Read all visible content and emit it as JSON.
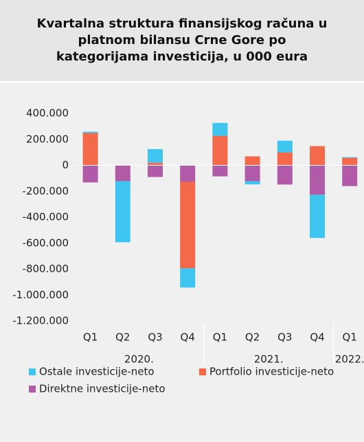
{
  "chart_data": {
    "type": "stacked_bar",
    "title": "Kvartalna struktura finansijskog računa u platnom bilansu Crne Gore po kategorijama investicija, u 000 eura",
    "categories": [
      "Q1",
      "Q2",
      "Q3",
      "Q4",
      "Q1",
      "Q2",
      "Q3",
      "Q4",
      "Q1"
    ],
    "x_groups": [
      {
        "label": "2020.",
        "count": 4
      },
      {
        "label": "2021.",
        "count": 4
      },
      {
        "label": "2022.",
        "count": 1
      }
    ],
    "series": [
      {
        "name": "Ostale investicije-neto",
        "color": "#3fc6f0",
        "values": [
          10000,
          -471000,
          105000,
          -148000,
          100000,
          -25000,
          90000,
          -333000,
          5000
        ]
      },
      {
        "name": "Portfolio investicije-neto",
        "color": "#f4694a",
        "values": [
          249000,
          0,
          20000,
          -667000,
          227000,
          69000,
          100000,
          148000,
          58000
        ]
      },
      {
        "name": "Direktne investicije-neto",
        "color": "#b05aa8",
        "values": [
          -132000,
          -122000,
          -90000,
          -127000,
          -85000,
          -122000,
          -148000,
          -227000,
          -160000
        ]
      }
    ],
    "ylim": [
      -1200000,
      400000
    ],
    "yticks": [
      {
        "value": 400000,
        "label": "400.000"
      },
      {
        "value": 200000,
        "label": "200.000"
      },
      0,
      {
        "value": -200000,
        "label": "-200.000"
      },
      {
        "value": -400000,
        "label": "-400.000"
      },
      {
        "value": -600000,
        "label": "-600.000"
      },
      {
        "value": -800000,
        "label": "-800.000"
      },
      {
        "value": -1000000,
        "label": "-1.000.000"
      },
      {
        "value": -1200000,
        "label": "-1.200.000"
      }
    ],
    "grid": false,
    "legend": "bottom"
  }
}
